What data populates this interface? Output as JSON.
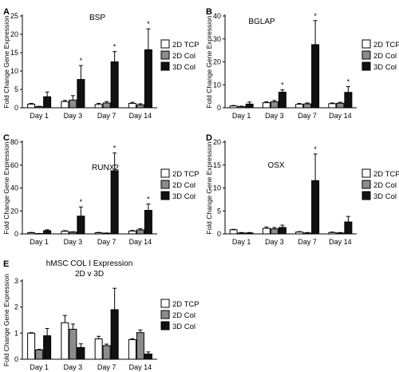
{
  "figure": {
    "legend_labels": [
      "2D TCP",
      "2D Col",
      "3D Col"
    ],
    "colors": {
      "2D TCP": "#ffffff",
      "2D Col": "#8c8c8c",
      "3D Col": "#111111"
    }
  },
  "chart_data": [
    {
      "panel": "A",
      "type": "bar",
      "title": "BSP",
      "ylabel": "Fold Change Gene Expression",
      "xlabel": "",
      "categories": [
        "Day 1",
        "Day 3",
        "Day 7",
        "Day 14"
      ],
      "ylim": [
        0,
        25
      ],
      "yticks": [
        0,
        5,
        10,
        15,
        20,
        25
      ],
      "legend": "top-right",
      "series": [
        {
          "name": "2D TCP",
          "values": [
            1.0,
            1.7,
            0.9,
            1.2
          ],
          "errors": [
            0.2,
            0.3,
            0.3,
            0.3
          ]
        },
        {
          "name": "2D Col",
          "values": [
            0.3,
            2.1,
            1.3,
            0.8
          ],
          "errors": [
            0.1,
            1.2,
            0.4,
            0.3
          ]
        },
        {
          "name": "3D Col",
          "values": [
            3.0,
            7.7,
            12.5,
            15.8
          ],
          "errors": [
            1.3,
            3.8,
            2.8,
            5.7
          ]
        }
      ],
      "significant": [
        "Day 3",
        "Day 7",
        "Day 14"
      ]
    },
    {
      "panel": "B",
      "type": "bar",
      "title": "BGLAP",
      "ylabel": "Fold Change Gene Expression",
      "xlabel": "",
      "categories": [
        "Day 1",
        "Day 3",
        "Day 7",
        "Day 14"
      ],
      "ylim": [
        0,
        40
      ],
      "yticks": [
        0,
        10,
        20,
        30,
        40
      ],
      "legend": "top-right",
      "series": [
        {
          "name": "2D TCP",
          "values": [
            0.8,
            2.2,
            1.5,
            1.8
          ],
          "errors": [
            0.2,
            0.4,
            0.4,
            0.3
          ]
        },
        {
          "name": "2D Col",
          "values": [
            0.5,
            2.6,
            1.7,
            2.0
          ],
          "errors": [
            0.2,
            0.6,
            0.4,
            0.4
          ]
        },
        {
          "name": "3D Col",
          "values": [
            1.6,
            6.8,
            27.5,
            6.7
          ],
          "errors": [
            0.9,
            1.0,
            10.5,
            2.5
          ]
        }
      ],
      "significant": [
        "Day 3",
        "Day 7",
        "Day 14"
      ]
    },
    {
      "panel": "C",
      "type": "bar",
      "title": "RUNX2",
      "ylabel": "Fold Change Gene Expression",
      "xlabel": "",
      "categories": [
        "Day 1",
        "Day 3",
        "Day 7",
        "Day 14"
      ],
      "ylim": [
        0,
        80
      ],
      "yticks": [
        0,
        20,
        40,
        60,
        80
      ],
      "legend": "top-right",
      "series": [
        {
          "name": "2D TCP",
          "values": [
            1.0,
            2.3,
            1.0,
            2.5
          ],
          "errors": [
            0.3,
            0.5,
            0.3,
            0.5
          ]
        },
        {
          "name": "2D Col",
          "values": [
            0.3,
            1.5,
            0.6,
            3.5
          ],
          "errors": [
            0.1,
            0.4,
            0.2,
            1.0
          ]
        },
        {
          "name": "3D Col",
          "values": [
            2.8,
            15.5,
            55.0,
            20.5
          ],
          "errors": [
            0.8,
            8.0,
            15.5,
            5.5
          ]
        }
      ],
      "significant": [
        "Day 3",
        "Day 7",
        "Day 14"
      ]
    },
    {
      "panel": "D",
      "type": "bar",
      "title": "OSX",
      "ylabel": "Fold Change Gene Expression",
      "xlabel": "",
      "categories": [
        "Day 1",
        "Day 3",
        "Day 7",
        "Day 14"
      ],
      "ylim": [
        0,
        20
      ],
      "yticks": [
        0,
        5,
        10,
        15,
        20
      ],
      "legend": "top-right",
      "series": [
        {
          "name": "2D TCP",
          "values": [
            0.9,
            1.2,
            0.4,
            0.3
          ],
          "errors": [
            0.1,
            0.3,
            0.1,
            0.1
          ]
        },
        {
          "name": "2D Col",
          "values": [
            0.2,
            1.1,
            0.2,
            0.2
          ],
          "errors": [
            0.1,
            0.3,
            0.1,
            0.1
          ]
        },
        {
          "name": "3D Col",
          "values": [
            0.2,
            1.4,
            11.6,
            2.6
          ],
          "errors": [
            0.1,
            0.5,
            5.8,
            1.2
          ]
        }
      ],
      "significant": [
        "Day 7"
      ]
    },
    {
      "panel": "E",
      "type": "bar",
      "title": "hMSC COL I Expression",
      "subtitle": "2D v 3D",
      "ylabel": "Fold Change Gene Expression",
      "xlabel": "",
      "categories": [
        "Day 1",
        "Day 3",
        "Day 7",
        "Day 14"
      ],
      "ylim": [
        0,
        3
      ],
      "yticks": [
        0,
        1,
        2,
        3
      ],
      "legend": "right",
      "series": [
        {
          "name": "2D TCP",
          "values": [
            1.0,
            1.4,
            0.78,
            0.75
          ],
          "errors": [
            0.02,
            0.28,
            0.1,
            0.04
          ]
        },
        {
          "name": "2D Col",
          "values": [
            0.36,
            1.15,
            0.52,
            1.02
          ],
          "errors": [
            0.02,
            0.2,
            0.06,
            0.1
          ]
        },
        {
          "name": "3D Col",
          "values": [
            0.9,
            0.45,
            1.9,
            0.2
          ],
          "errors": [
            0.28,
            0.14,
            0.82,
            0.08
          ]
        }
      ],
      "significant": []
    }
  ]
}
